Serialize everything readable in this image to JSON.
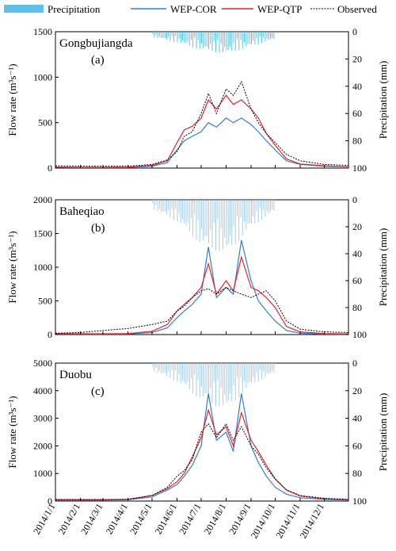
{
  "legend": {
    "precipitation": "Precipitation",
    "wep_cor": "WEP-COR",
    "wep_qtp": "WEP-QTP",
    "observed": "Observed"
  },
  "colors": {
    "precipitation": "#5bc0eb",
    "precipitation_light": "#a9cce8",
    "wep_cor": "#2f7fd0",
    "wep_qtp": "#e8202a",
    "observed": "#000000"
  },
  "axis_labels": {
    "flow": "Flow rate (m³s⁻¹)",
    "precip": "Precipitation (mm)"
  },
  "x_tick_labels": [
    "2014/1/1",
    "2014/2/1",
    "2014/3/1",
    "2014/4/1",
    "2014/5/1",
    "2014/6/1",
    "2014/7/1",
    "2014/8/1",
    "2014/9/1",
    "2014/10/1",
    "2014/11/1",
    "2014/12/1"
  ],
  "chart_data": [
    {
      "type": "line",
      "station": "Gongbujiangda",
      "panel_label": "(a)",
      "ylim": [
        0,
        1500
      ],
      "yticks": [
        0,
        500,
        1000,
        1500
      ],
      "y2lim": [
        0,
        100
      ],
      "y2ticks": [
        0,
        20,
        40,
        60,
        80,
        100
      ],
      "y2_inverted": true,
      "x": [
        "2014/1/1",
        "2014/2/1",
        "2014/3/1",
        "2014/4/1",
        "2014/5/1",
        "2014/5/20",
        "2014/6/1",
        "2014/6/10",
        "2014/6/20",
        "2014/7/1",
        "2014/7/10",
        "2014/7/20",
        "2014/8/1",
        "2014/8/10",
        "2014/8/20",
        "2014/9/1",
        "2014/9/10",
        "2014/9/20",
        "2014/10/1",
        "2014/10/15",
        "2014/11/1",
        "2014/12/1",
        "2014/12/31"
      ],
      "series": [
        {
          "name": "WEP-COR",
          "values": [
            10,
            8,
            7,
            8,
            20,
            60,
            200,
            300,
            350,
            400,
            500,
            450,
            550,
            500,
            550,
            480,
            400,
            300,
            200,
            80,
            40,
            20,
            15
          ]
        },
        {
          "name": "WEP-QTP",
          "values": [
            10,
            8,
            8,
            10,
            30,
            80,
            280,
            420,
            460,
            550,
            750,
            650,
            800,
            700,
            750,
            650,
            550,
            380,
            250,
            100,
            45,
            25,
            15
          ]
        },
        {
          "name": "Observed",
          "values": [
            25,
            22,
            20,
            22,
            40,
            90,
            180,
            350,
            400,
            600,
            820,
            600,
            870,
            800,
            950,
            650,
            500,
            380,
            280,
            150,
            80,
            40,
            30
          ]
        }
      ],
      "precipitation": {
        "x": [
          "2014/5/1",
          "2014/6/1",
          "2014/7/1",
          "2014/8/1",
          "2014/9/1",
          "2014/10/1"
        ],
        "values": [
          3,
          6,
          10,
          12,
          8,
          4
        ]
      }
    },
    {
      "type": "line",
      "station": "Baheqiao",
      "panel_label": "(b)",
      "ylim": [
        0,
        2000
      ],
      "yticks": [
        0,
        500,
        1000,
        1500,
        2000
      ],
      "y2lim": [
        0,
        100
      ],
      "y2ticks": [
        0,
        20,
        40,
        60,
        80,
        100
      ],
      "y2_inverted": true,
      "x": [
        "2014/1/1",
        "2014/2/1",
        "2014/3/1",
        "2014/4/1",
        "2014/5/1",
        "2014/5/20",
        "2014/6/1",
        "2014/6/10",
        "2014/6/20",
        "2014/7/1",
        "2014/7/10",
        "2014/7/20",
        "2014/8/1",
        "2014/8/10",
        "2014/8/20",
        "2014/9/1",
        "2014/9/10",
        "2014/9/20",
        "2014/10/1",
        "2014/10/15",
        "2014/11/1",
        "2014/12/1",
        "2014/12/31"
      ],
      "series": [
        {
          "name": "WEP-COR",
          "values": [
            10,
            8,
            7,
            8,
            30,
            100,
            250,
            350,
            450,
            600,
            1300,
            550,
            700,
            600,
            1400,
            800,
            500,
            350,
            200,
            60,
            20,
            8,
            5
          ]
        },
        {
          "name": "WEP-QTP",
          "values": [
            15,
            12,
            12,
            15,
            50,
            150,
            350,
            450,
            550,
            700,
            1050,
            600,
            800,
            650,
            1150,
            700,
            650,
            550,
            400,
            120,
            40,
            15,
            10
          ]
        },
        {
          "name": "Observed",
          "values": [
            20,
            30,
            60,
            90,
            150,
            200,
            350,
            420,
            550,
            650,
            680,
            600,
            700,
            650,
            600,
            550,
            600,
            650,
            500,
            200,
            80,
            40,
            30
          ]
        }
      ],
      "precipitation": {
        "x": [
          "2014/5/1",
          "2014/6/1",
          "2014/7/1",
          "2014/8/1",
          "2014/9/1",
          "2014/10/1"
        ],
        "values": [
          5,
          12,
          25,
          30,
          15,
          6
        ]
      }
    },
    {
      "type": "line",
      "station": "Duobu",
      "panel_label": "(c)",
      "ylim": [
        0,
        5000
      ],
      "yticks": [
        0,
        1000,
        2000,
        3000,
        4000,
        5000
      ],
      "y2lim": [
        0,
        100
      ],
      "y2ticks": [
        0,
        20,
        40,
        60,
        80,
        100
      ],
      "y2_inverted": true,
      "x": [
        "2014/1/1",
        "2014/2/1",
        "2014/3/1",
        "2014/4/1",
        "2014/5/1",
        "2014/5/20",
        "2014/6/1",
        "2014/6/10",
        "2014/6/20",
        "2014/7/1",
        "2014/7/10",
        "2014/7/20",
        "2014/8/1",
        "2014/8/10",
        "2014/8/20",
        "2014/9/1",
        "2014/9/10",
        "2014/9/20",
        "2014/10/1",
        "2014/10/15",
        "2014/11/1",
        "2014/12/1",
        "2014/12/31"
      ],
      "series": [
        {
          "name": "WEP-COR",
          "values": [
            40,
            40,
            40,
            50,
            150,
            400,
            600,
            900,
            1300,
            2000,
            3900,
            2200,
            2500,
            1800,
            3900,
            2000,
            1400,
            900,
            500,
            250,
            120,
            60,
            40
          ]
        },
        {
          "name": "WEP-QTP",
          "values": [
            50,
            50,
            50,
            60,
            200,
            450,
            700,
            1000,
            1600,
            2300,
            3300,
            2400,
            2700,
            2000,
            3200,
            2200,
            1800,
            1300,
            800,
            400,
            180,
            80,
            50
          ]
        },
        {
          "name": "Observed",
          "values": [
            60,
            55,
            55,
            60,
            200,
            500,
            900,
            1100,
            1500,
            2500,
            2800,
            2300,
            2800,
            2200,
            2700,
            2000,
            1700,
            1200,
            800,
            400,
            200,
            100,
            60
          ]
        }
      ],
      "precipitation": {
        "x": [
          "2014/5/1",
          "2014/6/1",
          "2014/7/1",
          "2014/8/1",
          "2014/9/1",
          "2014/10/1"
        ],
        "values": [
          4,
          10,
          20,
          25,
          12,
          5
        ]
      }
    }
  ]
}
